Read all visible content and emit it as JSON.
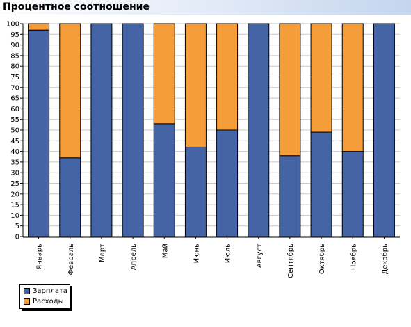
{
  "header": {
    "title": "Процентное соотношение"
  },
  "chart_data": {
    "type": "bar",
    "stacked": true,
    "title": "Процентное соотношение",
    "xlabel": "",
    "ylabel": "",
    "ylim": [
      0,
      100
    ],
    "yticks": [
      0,
      5,
      10,
      15,
      20,
      25,
      30,
      35,
      40,
      45,
      50,
      55,
      60,
      65,
      70,
      75,
      80,
      85,
      90,
      95,
      100
    ],
    "grid": true,
    "legend_position": "bottom-left",
    "categories": [
      "Январь",
      "Февраль",
      "Март",
      "Апрель",
      "Май",
      "Июнь",
      "Июль",
      "Август",
      "Сентябрь",
      "Октябрь",
      "Ноябрь",
      "Декабрь"
    ],
    "series": [
      {
        "name": "Зарплата",
        "color": "#4464a5",
        "values": [
          97,
          37,
          100,
          100,
          53,
          42,
          50,
          100,
          38,
          49,
          40,
          100
        ]
      },
      {
        "name": "Расходы",
        "color": "#f59d38",
        "values": [
          3,
          63,
          0,
          0,
          47,
          58,
          50,
          0,
          62,
          51,
          60,
          0
        ]
      }
    ]
  }
}
